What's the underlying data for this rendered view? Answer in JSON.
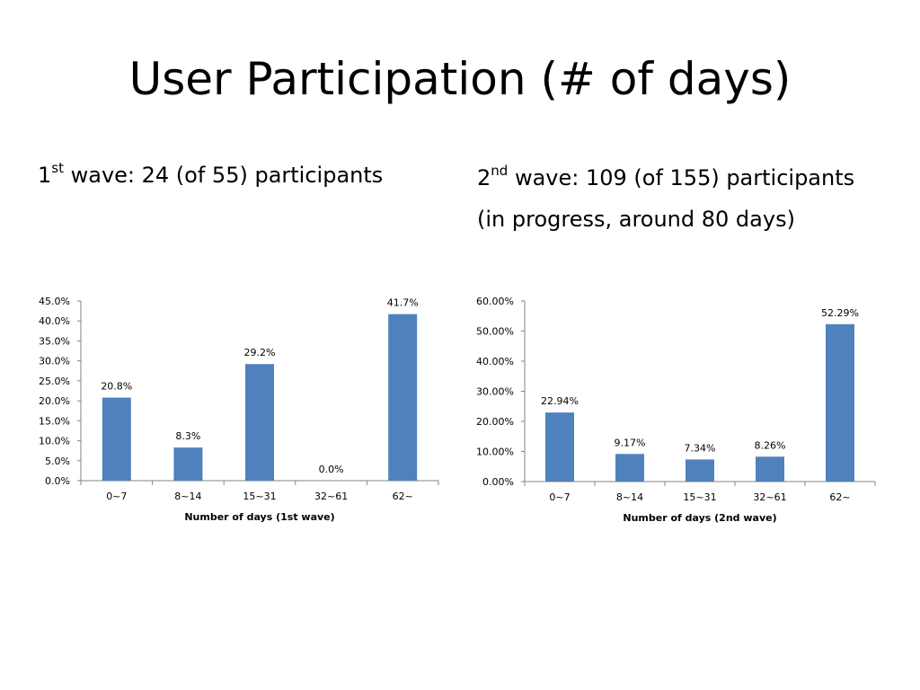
{
  "slide": {
    "title": "User Participation (# of days)",
    "wave1": {
      "ordinal_number": "1",
      "ordinal_suffix": "st",
      "text": " wave: 24 (of 55) participants"
    },
    "wave2": {
      "ordinal_number": "2",
      "ordinal_suffix": "nd",
      "text": " wave: 109 (of 155) participants",
      "note": "(in progress, around 80 days)"
    }
  },
  "bar_color": "#4F81BD",
  "chart_data": [
    {
      "type": "bar",
      "title": "",
      "xlabel": "Number of days (1st wave)",
      "ylabel": "",
      "categories": [
        "0~7",
        "8~14",
        "15~31",
        "32~61",
        "62~"
      ],
      "values": [
        20.8,
        8.3,
        29.2,
        0.0,
        41.7
      ],
      "data_labels": [
        "20.8%",
        "8.3%",
        "29.2%",
        "0.0%",
        "41.7%"
      ],
      "ylim": [
        0,
        45
      ],
      "yticks": [
        "0.0%",
        "5.0%",
        "10.0%",
        "15.0%",
        "20.0%",
        "25.0%",
        "30.0%",
        "35.0%",
        "40.0%",
        "45.0%"
      ],
      "grid": false,
      "legend": "none"
    },
    {
      "type": "bar",
      "title": "",
      "xlabel": "Number of days (2nd wave)",
      "ylabel": "",
      "categories": [
        "0~7",
        "8~14",
        "15~31",
        "32~61",
        "62~"
      ],
      "values": [
        22.94,
        9.17,
        7.34,
        8.26,
        52.29
      ],
      "data_labels": [
        "22.94%",
        "9.17%",
        "7.34%",
        "8.26%",
        "52.29%"
      ],
      "ylim": [
        0,
        60
      ],
      "yticks": [
        "0.00%",
        "10.00%",
        "20.00%",
        "30.00%",
        "40.00%",
        "50.00%",
        "60.00%"
      ],
      "grid": false,
      "legend": "none"
    }
  ]
}
